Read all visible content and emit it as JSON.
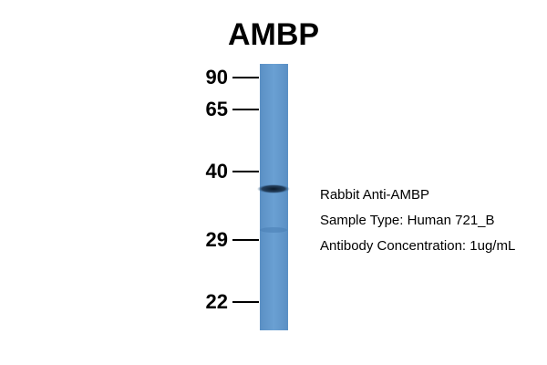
{
  "title": "AMBP",
  "markers": [
    90,
    65,
    40,
    29,
    22
  ],
  "annotations": [
    "Rabbit Anti-AMBP",
    "Sample Type: Human 721_B",
    "Antibody Concentration: 1ug/mL"
  ]
}
